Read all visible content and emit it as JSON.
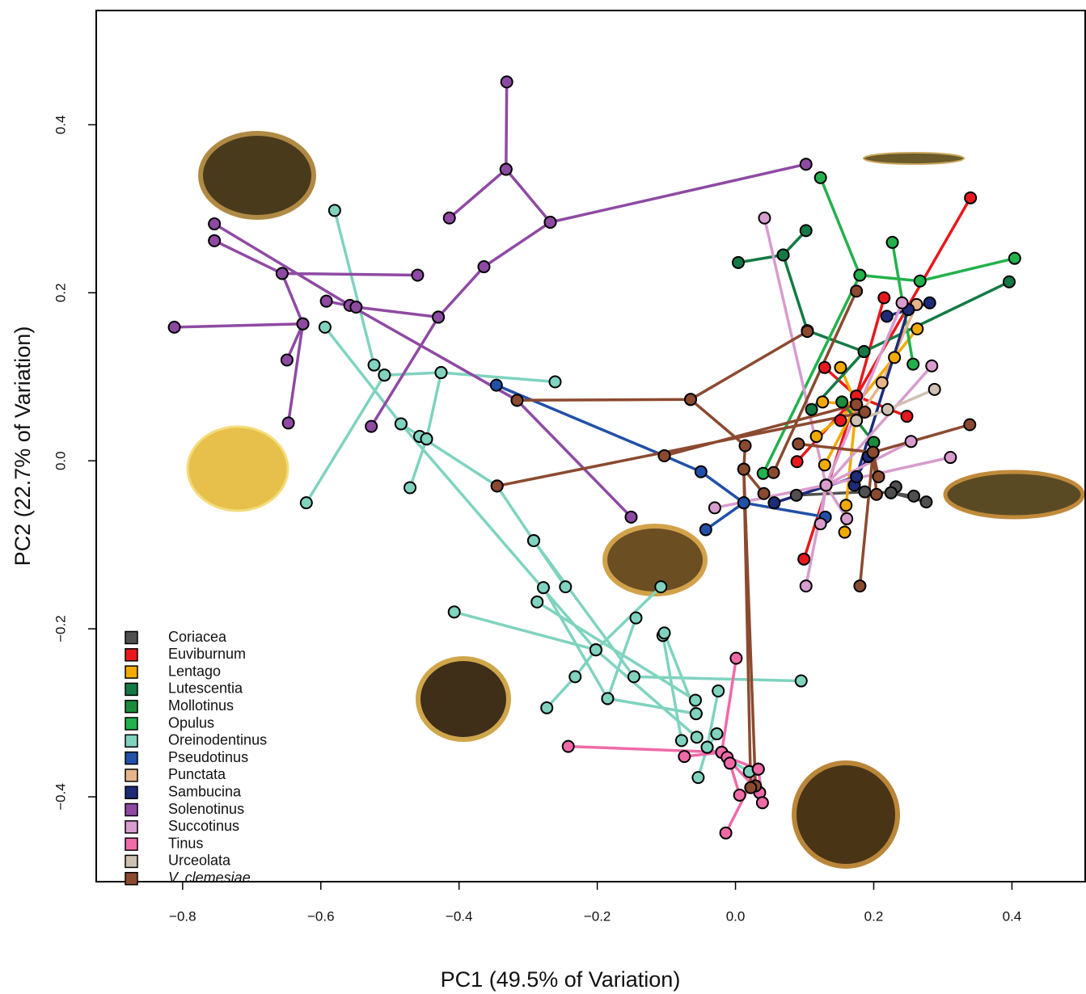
{
  "chart_data": {
    "type": "line",
    "x_label": "PC1 (49.5% of Variation)",
    "y_label": "PC2 (22.7% of Variation)",
    "xlim": [
      -0.925,
      0.506
    ],
    "ylim": [
      -0.501,
      0.536
    ],
    "xticks": [
      {
        "value": -0.8,
        "label": "−0.8"
      },
      {
        "value": -0.6,
        "label": "−0.6"
      },
      {
        "value": -0.4,
        "label": "−0.4"
      },
      {
        "value": -0.2,
        "label": "−0.2"
      },
      {
        "value": 0,
        "label": "0.0"
      },
      {
        "value": 0.2,
        "label": "0.2"
      },
      {
        "value": 0.4,
        "label": "0.4"
      }
    ],
    "yticks": [
      {
        "value": -0.4,
        "label": "−0.4"
      },
      {
        "value": -0.2,
        "label": "−0.2"
      },
      {
        "value": 0,
        "label": "0.0"
      },
      {
        "value": 0.2,
        "label": "0.2"
      },
      {
        "value": 0.4,
        "label": "0.4"
      }
    ],
    "legend": "bottom-left",
    "series": [
      {
        "name": "Coriacea",
        "color": "#505050",
        "x": [
          0.088,
          0.187,
          0.225,
          0.276,
          null,
          0.232,
          0.225,
          null,
          0.258,
          0.225
        ],
        "y": [
          -0.041,
          -0.037,
          -0.038,
          -0.049,
          null,
          -0.031,
          -0.038,
          null,
          -0.042,
          -0.038
        ]
      },
      {
        "name": "Euviburnum",
        "color": "#e8181c",
        "x": [
          0.099,
          0.175,
          0.34,
          null,
          0.129,
          0.175,
          0.248,
          null,
          0.089,
          0.175,
          null,
          0.215,
          0.175,
          null,
          0.152,
          0.175
        ],
        "y": [
          -0.117,
          0.077,
          0.313,
          null,
          0.111,
          0.077,
          0.053,
          null,
          -0.001,
          0.077,
          null,
          0.194,
          0.077,
          null,
          0.048,
          0.077
        ]
      },
      {
        "name": "Lentago",
        "color": "#f2a900",
        "x": [
          0.158,
          0.16,
          0.175,
          0.263,
          null,
          0.126,
          0.175,
          null,
          0.152,
          0.175,
          null,
          0.23,
          0.175,
          null,
          0.117,
          0.175,
          null,
          0.129,
          0.175
        ],
        "y": [
          -0.085,
          -0.053,
          0.067,
          0.157,
          null,
          0.07,
          0.067,
          null,
          0.111,
          0.067,
          null,
          0.123,
          0.067,
          null,
          0.029,
          0.067,
          null,
          -0.005,
          0.067
        ]
      },
      {
        "name": "Lutescentia",
        "color": "#147a45",
        "x": [
          0.004,
          0.069,
          0.102,
          null,
          0.069,
          0.104,
          0.186,
          0.396,
          null,
          0.186,
          0.11
        ],
        "y": [
          0.236,
          0.245,
          0.274,
          null,
          0.245,
          0.155,
          0.13,
          0.213,
          null,
          0.13,
          0.061
        ]
      },
      {
        "name": "Mollotinus",
        "color": "#1a8c3c",
        "x": [
          0.154,
          0.2
        ],
        "y": [
          0.07,
          0.022
        ]
      },
      {
        "name": "Opulus",
        "color": "#22b14c",
        "x": [
          0.123,
          0.18,
          0.267,
          0.404,
          null,
          0.227,
          0.257,
          null,
          0.04,
          0.18
        ],
        "y": [
          0.337,
          0.221,
          0.214,
          0.241,
          null,
          0.26,
          0.115,
          null,
          -0.015,
          0.221
        ]
      },
      {
        "name": "Oreinodentinus",
        "color": "#7fd3bf",
        "x": [
          -0.58,
          -0.523,
          -0.508,
          -0.426,
          -0.261,
          null,
          -0.621,
          -0.508,
          null,
          -0.426,
          -0.447,
          -0.471,
          null,
          -0.457,
          -0.447,
          null,
          -0.594,
          -0.484,
          -0.345,
          -0.292,
          -0.246,
          null,
          -0.484,
          -0.202,
          -0.056,
          null,
          -0.292,
          -0.147,
          0.095,
          null,
          -0.407,
          -0.202,
          null,
          -0.278,
          -0.185,
          -0.057,
          null,
          -0.287,
          -0.058,
          null,
          -0.108,
          -0.202,
          -0.232,
          -0.273,
          null,
          -0.144,
          -0.185,
          null,
          -0.105,
          -0.078,
          null,
          -0.103,
          -0.057,
          null,
          -0.025,
          -0.041,
          -0.054,
          null,
          -0.027,
          -0.041,
          0.02
        ],
        "y": [
          0.298,
          0.114,
          0.102,
          0.105,
          0.094,
          null,
          -0.05,
          0.102,
          null,
          0.105,
          0.026,
          -0.032,
          null,
          0.029,
          0.026,
          null,
          0.159,
          0.044,
          -0.03,
          -0.095,
          -0.15,
          null,
          0.044,
          -0.225,
          -0.329,
          null,
          -0.095,
          -0.257,
          -0.262,
          null,
          -0.18,
          -0.225,
          null,
          -0.151,
          -0.283,
          -0.301,
          null,
          -0.168,
          -0.285,
          null,
          -0.15,
          -0.225,
          -0.257,
          -0.294,
          null,
          -0.187,
          -0.283,
          null,
          -0.208,
          -0.333,
          null,
          -0.205,
          -0.301,
          null,
          -0.274,
          -0.341,
          -0.377,
          null,
          -0.325,
          -0.341,
          -0.37
        ]
      },
      {
        "name": "Pseudotinus",
        "color": "#2150a8",
        "x": [
          -0.346,
          -0.103,
          -0.05,
          0.012,
          0.13,
          null,
          -0.043,
          0.012
        ],
        "y": [
          0.09,
          0.006,
          -0.013,
          -0.05,
          -0.067,
          null,
          -0.082,
          -0.05
        ]
      },
      {
        "name": "Punctata",
        "color": "#e6b48a",
        "x": [
          0.262,
          0.212,
          0.175
        ],
        "y": [
          0.186,
          0.093,
          0.048
        ]
      },
      {
        "name": "Sambucina",
        "color": "#1d2b78",
        "x": [
          0.056,
          0.175,
          0.25,
          0.281,
          null,
          0.172,
          0.175,
          null,
          0.192,
          0.175,
          null,
          0.219,
          0.25
        ],
        "y": [
          -0.05,
          -0.019,
          0.18,
          0.188,
          null,
          -0.029,
          -0.019,
          null,
          0.005,
          -0.019,
          null,
          0.172,
          0.18
        ]
      },
      {
        "name": "Solenotinus",
        "color": "#8e4aa3",
        "x": [
          -0.331,
          -0.332,
          -0.414,
          null,
          -0.332,
          -0.268,
          0.102,
          null,
          -0.268,
          -0.364,
          -0.43,
          -0.527,
          null,
          -0.656,
          -0.46,
          null,
          -0.754,
          -0.558,
          -0.316,
          -0.151,
          null,
          -0.754,
          -0.656,
          -0.626,
          -0.647,
          null,
          -0.812,
          -0.626,
          null,
          -0.649,
          -0.626,
          null,
          -0.592,
          -0.549,
          -0.43
        ],
        "y": [
          0.451,
          0.347,
          0.289,
          null,
          0.347,
          0.284,
          0.353,
          null,
          0.284,
          0.231,
          0.171,
          0.041,
          null,
          0.223,
          0.221,
          null,
          0.282,
          0.185,
          0.072,
          -0.067,
          null,
          0.262,
          0.223,
          0.163,
          0.045,
          null,
          0.159,
          0.163,
          null,
          0.12,
          0.163,
          null,
          0.19,
          0.183,
          0.171
        ]
      },
      {
        "name": "Succotinus",
        "color": "#d89ccd",
        "x": [
          0.042,
          0.131,
          0.102,
          null,
          0.131,
          0.241,
          null,
          0.131,
          0.311,
          null,
          0.131,
          0.284,
          null,
          0.123,
          0.131,
          null,
          0.161,
          0.131,
          null,
          0.254,
          0.131,
          null,
          -0.03,
          0.131
        ],
        "y": [
          0.289,
          -0.029,
          -0.149,
          null,
          -0.029,
          0.188,
          null,
          -0.029,
          0.004,
          null,
          -0.029,
          0.113,
          null,
          -0.075,
          -0.029,
          null,
          -0.069,
          -0.029,
          null,
          0.023,
          -0.029,
          null,
          -0.056,
          -0.029
        ]
      },
      {
        "name": "Tinus",
        "color": "#f06aa8",
        "x": [
          -0.242,
          -0.02,
          0.035,
          null,
          -0.074,
          -0.02,
          null,
          0.001,
          -0.02,
          null,
          -0.012,
          0.033,
          null,
          -0.008,
          0.006,
          null,
          -0.014,
          0.033,
          0.039
        ],
        "y": [
          -0.34,
          -0.347,
          -0.395,
          null,
          -0.352,
          -0.347,
          null,
          -0.235,
          -0.347,
          null,
          -0.353,
          -0.367,
          null,
          -0.36,
          -0.398,
          null,
          -0.443,
          -0.367,
          -0.407
        ]
      },
      {
        "name": "Urceolata",
        "color": "#cfc1b2",
        "x": [
          0.288,
          0.22,
          0.175
        ],
        "y": [
          0.085,
          0.061,
          0.048
        ]
      },
      {
        "name": "V. clemesiae",
        "color": "#8b4a30",
        "italic": true,
        "x": [
          -0.316,
          -0.065,
          0.104,
          null,
          -0.065,
          0.014,
          0.012,
          0.029,
          null,
          0.022,
          0.012,
          null,
          0.012,
          0.041,
          null,
          -0.345,
          0.187,
          null,
          -0.103,
          0.175,
          null,
          0.055,
          0.175,
          null,
          0.18,
          0.199,
          0.339,
          null,
          0.207,
          0.199,
          null,
          0.204,
          0.199,
          null,
          0.091,
          0.199
        ],
        "y": [
          0.072,
          0.073,
          0.154,
          null,
          0.073,
          0.018,
          -0.01,
          -0.387,
          null,
          -0.389,
          -0.01,
          null,
          -0.01,
          -0.039,
          null,
          -0.03,
          0.058,
          null,
          0.006,
          0.067,
          null,
          -0.014,
          0.202,
          null,
          -0.149,
          0.01,
          0.043,
          null,
          -0.019,
          0.01,
          null,
          -0.04,
          0.01,
          null,
          0.02,
          0.01
        ]
      }
    ]
  }
}
